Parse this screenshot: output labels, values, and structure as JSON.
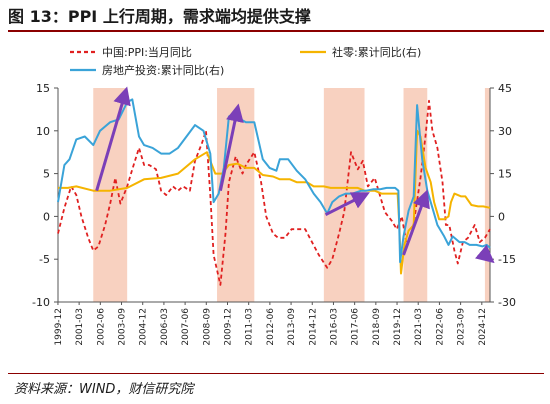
{
  "figure_title": "图 13：PPI 上行周期，需求端均提供支撑",
  "source_note": "资料来源：WIND，财信研究院",
  "chart_data": {
    "type": "line",
    "legend_placement": "top",
    "grid": false,
    "y_left": {
      "ticks": [
        15,
        10,
        5,
        0,
        -5,
        -10
      ],
      "range": [
        -10,
        15
      ]
    },
    "y_right": {
      "ticks": [
        45,
        30,
        15,
        0,
        -15,
        -30
      ],
      "range": [
        -30,
        45
      ]
    },
    "x_ticks": [
      "1999-12",
      "2001-03",
      "2002-06",
      "2003-09",
      "2004-12",
      "2006-03",
      "2007-06",
      "2008-09",
      "2009-12",
      "2011-03",
      "2012-06",
      "2013-09",
      "2014-12",
      "2016-03",
      "2017-06",
      "2018-09",
      "2019-12",
      "2021-03",
      "2022-06",
      "2023-09",
      "2024-12"
    ],
    "x_range": [
      1999.92,
      2025.4
    ],
    "shaded_periods": [
      [
        2002.0,
        2004.0
      ],
      [
        2009.3,
        2011.5
      ],
      [
        2015.6,
        2018.0
      ],
      [
        2020.3,
        2021.7
      ],
      [
        2025.1,
        2025.4
      ]
    ],
    "series": [
      {
        "name": "中国:PPI:当月同比",
        "axis": "left",
        "color": "#e02020",
        "style": "dashed",
        "points": [
          [
            1999.92,
            -2.0
          ],
          [
            2000.3,
            1.0
          ],
          [
            2000.7,
            3.5
          ],
          [
            2001.0,
            2.5
          ],
          [
            2001.3,
            0.0
          ],
          [
            2001.7,
            -2.5
          ],
          [
            2002.0,
            -4.0
          ],
          [
            2002.3,
            -3.5
          ],
          [
            2002.7,
            -1.0
          ],
          [
            2003.0,
            1.5
          ],
          [
            2003.3,
            4.5
          ],
          [
            2003.6,
            1.5
          ],
          [
            2004.0,
            3.5
          ],
          [
            2004.3,
            5.5
          ],
          [
            2004.7,
            8.0
          ],
          [
            2005.0,
            6.0
          ],
          [
            2005.3,
            6.0
          ],
          [
            2005.7,
            5.5
          ],
          [
            2006.0,
            3.0
          ],
          [
            2006.3,
            2.5
          ],
          [
            2006.7,
            3.5
          ],
          [
            2007.0,
            3.0
          ],
          [
            2007.3,
            3.5
          ],
          [
            2007.7,
            3.0
          ],
          [
            2008.0,
            6.5
          ],
          [
            2008.4,
            8.5
          ],
          [
            2008.65,
            10.0
          ],
          [
            2008.9,
            2.5
          ],
          [
            2009.1,
            -4.5
          ],
          [
            2009.5,
            -8.0
          ],
          [
            2009.8,
            -2.0
          ],
          [
            2010.0,
            4.0
          ],
          [
            2010.4,
            7.0
          ],
          [
            2010.8,
            5.0
          ],
          [
            2011.0,
            6.0
          ],
          [
            2011.5,
            7.5
          ],
          [
            2011.9,
            4.0
          ],
          [
            2012.2,
            0.0
          ],
          [
            2012.6,
            -2.0
          ],
          [
            2012.9,
            -2.5
          ],
          [
            2013.3,
            -2.5
          ],
          [
            2013.7,
            -1.5
          ],
          [
            2014.0,
            -1.5
          ],
          [
            2014.5,
            -1.5
          ],
          [
            2014.9,
            -3.0
          ],
          [
            2015.3,
            -4.5
          ],
          [
            2015.8,
            -6.0
          ],
          [
            2016.1,
            -5.0
          ],
          [
            2016.5,
            -2.0
          ],
          [
            2016.8,
            0.5
          ],
          [
            2017.0,
            4.0
          ],
          [
            2017.2,
            7.5
          ],
          [
            2017.6,
            5.5
          ],
          [
            2017.9,
            6.5
          ],
          [
            2018.2,
            3.5
          ],
          [
            2018.6,
            4.5
          ],
          [
            2018.9,
            2.5
          ],
          [
            2019.2,
            0.5
          ],
          [
            2019.6,
            -0.5
          ],
          [
            2019.9,
            -1.5
          ],
          [
            2020.2,
            0.0
          ],
          [
            2020.5,
            -3.5
          ],
          [
            2020.8,
            -2.0
          ],
          [
            2021.0,
            0.5
          ],
          [
            2021.3,
            4.5
          ],
          [
            2021.6,
            9.5
          ],
          [
            2021.8,
            13.5
          ],
          [
            2022.0,
            10.0
          ],
          [
            2022.3,
            8.0
          ],
          [
            2022.6,
            4.0
          ],
          [
            2022.8,
            -1.0
          ],
          [
            2023.0,
            -1.0
          ],
          [
            2023.3,
            -4.0
          ],
          [
            2023.5,
            -5.5
          ],
          [
            2023.8,
            -3.0
          ],
          [
            2024.1,
            -2.5
          ],
          [
            2024.5,
            -1.0
          ],
          [
            2024.8,
            -3.0
          ],
          [
            2025.1,
            -2.5
          ],
          [
            2025.4,
            -1.5
          ]
        ]
      },
      {
        "name": "社零:累计同比(右)",
        "axis": "right",
        "color": "#f5b400",
        "style": "solid",
        "points": [
          [
            1999.92,
            10.0
          ],
          [
            2000.5,
            10.0
          ],
          [
            2001.0,
            10.5
          ],
          [
            2002.0,
            9.0
          ],
          [
            2003.0,
            9.0
          ],
          [
            2004.0,
            10.0
          ],
          [
            2005.0,
            13.0
          ],
          [
            2006.0,
            13.5
          ],
          [
            2007.0,
            15.0
          ],
          [
            2008.0,
            20.0
          ],
          [
            2008.7,
            22.5
          ],
          [
            2009.2,
            15.0
          ],
          [
            2009.6,
            15.0
          ],
          [
            2010.0,
            18.0
          ],
          [
            2010.5,
            18.5
          ],
          [
            2011.0,
            17.0
          ],
          [
            2011.5,
            17.0
          ],
          [
            2012.0,
            14.5
          ],
          [
            2012.6,
            14.0
          ],
          [
            2013.0,
            13.0
          ],
          [
            2013.6,
            13.0
          ],
          [
            2014.0,
            12.0
          ],
          [
            2014.6,
            12.0
          ],
          [
            2015.0,
            10.5
          ],
          [
            2015.6,
            10.5
          ],
          [
            2016.0,
            10.0
          ],
          [
            2016.6,
            10.0
          ],
          [
            2017.0,
            10.0
          ],
          [
            2017.6,
            10.0
          ],
          [
            2018.0,
            9.0
          ],
          [
            2018.6,
            9.0
          ],
          [
            2019.0,
            8.0
          ],
          [
            2019.6,
            8.0
          ],
          [
            2019.95,
            8.0
          ],
          [
            2020.05,
            -3.0
          ],
          [
            2020.15,
            -20.0
          ],
          [
            2020.35,
            -10.0
          ],
          [
            2020.6,
            -5.0
          ],
          [
            2020.9,
            -3.0
          ],
          [
            2021.1,
            30.0
          ],
          [
            2021.3,
            28.0
          ],
          [
            2021.6,
            17.0
          ],
          [
            2021.9,
            12.0
          ],
          [
            2022.1,
            5.0
          ],
          [
            2022.4,
            -1.0
          ],
          [
            2022.7,
            -1.0
          ],
          [
            2022.95,
            0.0
          ],
          [
            2023.1,
            5.0
          ],
          [
            2023.3,
            8.0
          ],
          [
            2023.7,
            7.0
          ],
          [
            2023.95,
            7.0
          ],
          [
            2024.3,
            4.0
          ],
          [
            2024.7,
            3.5
          ],
          [
            2025.0,
            3.5
          ],
          [
            2025.4,
            3.0
          ]
        ]
      },
      {
        "name": "房地产投资:累计同比(右)",
        "axis": "right",
        "color": "#3aa3d8",
        "style": "solid",
        "points": [
          [
            1999.92,
            5.0
          ],
          [
            2000.3,
            18.0
          ],
          [
            2000.6,
            20.0
          ],
          [
            2001.0,
            27.0
          ],
          [
            2001.5,
            28.0
          ],
          [
            2002.0,
            25.0
          ],
          [
            2002.4,
            30.0
          ],
          [
            2003.0,
            33.0
          ],
          [
            2003.5,
            34.0
          ],
          [
            2004.0,
            40.0
          ],
          [
            2004.3,
            41.0
          ],
          [
            2004.7,
            28.0
          ],
          [
            2005.0,
            25.0
          ],
          [
            2005.5,
            24.0
          ],
          [
            2006.0,
            22.0
          ],
          [
            2006.5,
            22.0
          ],
          [
            2007.0,
            24.0
          ],
          [
            2007.5,
            28.0
          ],
          [
            2008.0,
            32.0
          ],
          [
            2008.5,
            30.0
          ],
          [
            2008.9,
            22.0
          ],
          [
            2009.1,
            5.0
          ],
          [
            2009.4,
            8.0
          ],
          [
            2009.7,
            17.0
          ],
          [
            2010.0,
            35.0
          ],
          [
            2010.3,
            36.0
          ],
          [
            2010.7,
            34.0
          ],
          [
            2011.0,
            33.0
          ],
          [
            2011.5,
            33.0
          ],
          [
            2012.0,
            20.0
          ],
          [
            2012.4,
            17.0
          ],
          [
            2012.8,
            16.0
          ],
          [
            2013.0,
            20.0
          ],
          [
            2013.5,
            20.0
          ],
          [
            2014.0,
            16.0
          ],
          [
            2014.5,
            13.0
          ],
          [
            2015.0,
            8.0
          ],
          [
            2015.4,
            5.0
          ],
          [
            2015.8,
            1.0
          ],
          [
            2016.1,
            5.0
          ],
          [
            2016.5,
            7.0
          ],
          [
            2016.9,
            8.0
          ],
          [
            2017.3,
            8.0
          ],
          [
            2017.8,
            9.0
          ],
          [
            2018.1,
            9.0
          ],
          [
            2018.5,
            9.5
          ],
          [
            2018.9,
            9.5
          ],
          [
            2019.3,
            10.0
          ],
          [
            2019.8,
            10.0
          ],
          [
            2020.0,
            9.0
          ],
          [
            2020.1,
            -16.0
          ],
          [
            2020.3,
            -7.0
          ],
          [
            2020.6,
            2.0
          ],
          [
            2020.9,
            7.0
          ],
          [
            2021.1,
            39.0
          ],
          [
            2021.4,
            20.0
          ],
          [
            2021.7,
            9.0
          ],
          [
            2022.0,
            3.0
          ],
          [
            2022.3,
            -3.0
          ],
          [
            2022.7,
            -7.0
          ],
          [
            2022.95,
            -10.0
          ],
          [
            2023.2,
            -7.0
          ],
          [
            2023.6,
            -9.0
          ],
          [
            2023.9,
            -9.0
          ],
          [
            2024.2,
            -10.0
          ],
          [
            2024.6,
            -10.0
          ],
          [
            2024.95,
            -10.5
          ],
          [
            2025.2,
            -10.0
          ],
          [
            2025.4,
            -11.0
          ]
        ]
      }
    ],
    "arrows": [
      [
        [
          2002.2,
          3.0
        ],
        [
          2003.9,
          14.5
        ]
      ],
      [
        [
          2009.5,
          3.0
        ],
        [
          2010.5,
          12.5
        ]
      ],
      [
        [
          2015.7,
          0.2
        ],
        [
          2018.0,
          2.5
        ]
      ],
      [
        [
          2020.3,
          -4.5
        ],
        [
          2021.6,
          2.5
        ]
      ],
      [
        [
          2025.1,
          -4.5
        ],
        [
          2025.4,
          -5.0
        ]
      ]
    ]
  }
}
